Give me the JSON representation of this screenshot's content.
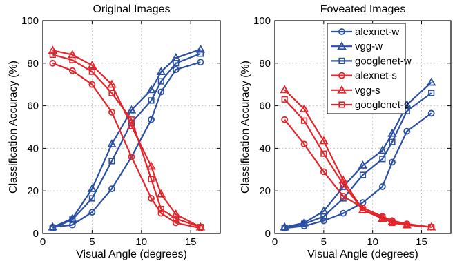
{
  "chart_data": [
    {
      "type": "line",
      "title": "Original Images",
      "xlabel": "Visual Angle (degrees)",
      "ylabel": "Classification Accuracy (%)",
      "xlim": [
        0,
        18
      ],
      "ylim": [
        0,
        100
      ],
      "xticks": [
        0,
        5,
        10,
        15
      ],
      "yticks": [
        0,
        20,
        40,
        60,
        80,
        100
      ],
      "grid": true,
      "legend": "none",
      "x": [
        1,
        3,
        5,
        7,
        9,
        11,
        12,
        13.5,
        16
      ],
      "series": [
        {
          "name": "alexnet-w",
          "color": "#2a4fa3",
          "marker": "circle",
          "values": [
            3,
            4,
            10,
            21,
            36,
            53.5,
            66.5,
            77,
            80.5
          ]
        },
        {
          "name": "vgg-w",
          "color": "#2a4fa3",
          "marker": "triangle",
          "values": [
            3,
            7,
            21,
            42,
            58,
            67.5,
            76,
            82.5,
            86.5
          ]
        },
        {
          "name": "googlenet-w",
          "color": "#2a4fa3",
          "marker": "square",
          "values": [
            2.5,
            6.5,
            16.5,
            34,
            52,
            62.5,
            71.5,
            80,
            84.5
          ]
        },
        {
          "name": "alexnet-s",
          "color": "#e3242b",
          "marker": "circle",
          "values": [
            80,
            76.5,
            70,
            57,
            36,
            16.5,
            9.5,
            5,
            2.5
          ]
        },
        {
          "name": "vgg-s",
          "color": "#e3242b",
          "marker": "triangle",
          "values": [
            86,
            84,
            79,
            70,
            50.5,
            31.5,
            18.5,
            9,
            3
          ]
        },
        {
          "name": "googlenet-s",
          "color": "#e3242b",
          "marker": "square",
          "values": [
            84,
            81.5,
            76,
            66,
            53.5,
            25.5,
            11.5,
            7,
            3
          ]
        }
      ]
    },
    {
      "type": "line",
      "title": "Foveated Images",
      "xlabel": "Visual Angle (degrees)",
      "ylabel": "Classification Accuracy (%)",
      "xlim": [
        0,
        18
      ],
      "ylim": [
        0,
        100
      ],
      "xticks": [
        0,
        5,
        10,
        15
      ],
      "yticks": [
        0,
        20,
        40,
        60,
        80,
        100
      ],
      "grid": true,
      "legend": "top",
      "x": [
        1,
        3,
        5,
        7,
        9,
        11,
        12,
        13.5,
        16
      ],
      "series": [
        {
          "name": "alexnet-w",
          "color": "#2a4fa3",
          "marker": "circle",
          "values": [
            2.5,
            3.5,
            6,
            9.5,
            14.5,
            22,
            33.5,
            48,
            56.5
          ]
        },
        {
          "name": "vgg-w",
          "color": "#2a4fa3",
          "marker": "triangle",
          "values": [
            3,
            5,
            10.5,
            22,
            32,
            39,
            47,
            60.5,
            71
          ]
        },
        {
          "name": "googlenet-w",
          "color": "#2a4fa3",
          "marker": "square",
          "values": [
            2.5,
            4.5,
            8,
            16.5,
            27.5,
            35,
            43,
            57.5,
            66
          ]
        },
        {
          "name": "alexnet-s",
          "color": "#e3242b",
          "marker": "circle",
          "values": [
            53.5,
            42,
            29,
            17.5,
            12,
            8,
            6,
            4.5,
            3
          ]
        },
        {
          "name": "vgg-s",
          "color": "#e3242b",
          "marker": "triangle",
          "values": [
            67.5,
            58.5,
            43.5,
            25,
            11,
            7,
            5.5,
            4,
            3
          ]
        },
        {
          "name": "googlenet-s",
          "color": "#e3242b",
          "marker": "square",
          "values": [
            63,
            53,
            37.5,
            23,
            11,
            7.5,
            5,
            4,
            3
          ]
        }
      ]
    }
  ]
}
